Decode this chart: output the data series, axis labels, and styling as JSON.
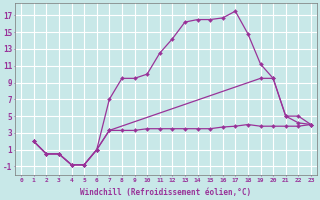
{
  "xlabel": "Windchill (Refroidissement éolien,°C)",
  "background_color": "#c8e8e8",
  "grid_color": "#ffffff",
  "line_color": "#993399",
  "xlim": [
    -0.5,
    23.5
  ],
  "ylim": [
    -2,
    18.5
  ],
  "xticks": [
    0,
    1,
    2,
    3,
    4,
    5,
    6,
    7,
    8,
    9,
    10,
    11,
    12,
    13,
    14,
    15,
    16,
    17,
    18,
    19,
    20,
    21,
    22,
    23
  ],
  "yticks": [
    -1,
    1,
    3,
    5,
    7,
    9,
    11,
    13,
    15,
    17
  ],
  "series": [
    {
      "x": [
        1,
        2,
        3,
        4,
        5,
        6,
        7,
        8,
        9,
        10,
        11,
        12,
        13,
        14,
        15,
        16,
        17,
        18,
        19,
        20,
        21,
        22,
        23
      ],
      "y": [
        2.0,
        0.5,
        0.5,
        -0.8,
        -0.8,
        1.0,
        3.3,
        3.3,
        3.3,
        3.5,
        3.5,
        3.5,
        3.5,
        3.5,
        3.5,
        3.7,
        3.8,
        4.0,
        3.8,
        3.8,
        3.8,
        3.8,
        4.0
      ]
    },
    {
      "x": [
        1,
        2,
        3,
        4,
        5,
        6,
        7,
        19,
        20,
        21,
        22,
        23
      ],
      "y": [
        2.0,
        0.5,
        0.5,
        -0.8,
        -0.8,
        1.0,
        3.3,
        9.5,
        9.5,
        5.0,
        5.0,
        4.0
      ]
    },
    {
      "x": [
        1,
        2,
        3,
        4,
        5,
        6,
        7,
        8,
        9,
        10,
        11,
        12,
        13,
        14,
        15,
        16,
        17,
        18,
        19,
        20,
        21,
        22,
        23
      ],
      "y": [
        2.0,
        0.5,
        0.5,
        -0.8,
        -0.8,
        1.0,
        7.0,
        9.5,
        9.5,
        10.0,
        12.5,
        14.2,
        16.2,
        16.5,
        16.5,
        16.7,
        17.5,
        14.8,
        11.2,
        9.5,
        5.0,
        4.2,
        4.0
      ]
    }
  ]
}
